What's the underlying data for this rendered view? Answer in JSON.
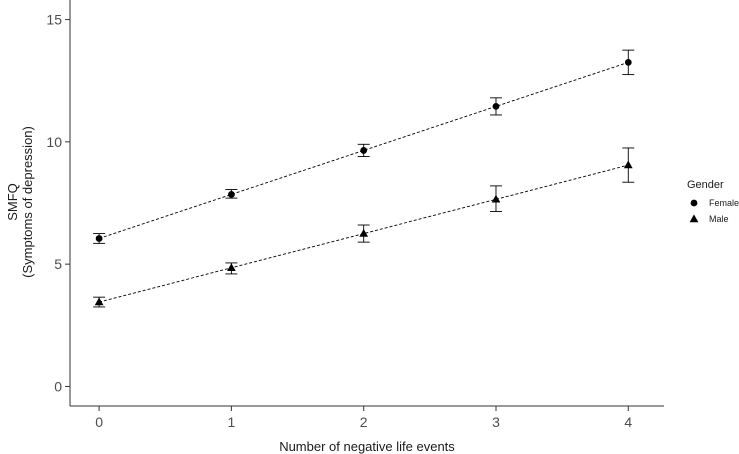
{
  "chart_data": {
    "type": "line",
    "xlabel": "Number of negative life events",
    "ylabel": [
      "SMFQ",
      "(Symptoms of depression)"
    ],
    "x": [
      0,
      1,
      2,
      3,
      4
    ],
    "xticks": [
      "0",
      "1",
      "2",
      "3",
      "4"
    ],
    "yticks": [
      "0",
      "5",
      "10",
      "15"
    ],
    "xlim": [
      -0.22,
      4.27
    ],
    "ylim": [
      -0.8,
      15.8
    ],
    "grid": false,
    "legend": {
      "title": "Gender",
      "position": "right"
    },
    "series": [
      {
        "name": "Female",
        "marker": "circle",
        "values": [
          6.05,
          7.85,
          9.65,
          11.45,
          13.25
        ],
        "err_low": [
          5.85,
          7.7,
          9.4,
          11.1,
          12.75
        ],
        "err_high": [
          6.25,
          8.05,
          9.9,
          11.8,
          13.75
        ]
      },
      {
        "name": "Male",
        "marker": "triangle",
        "values": [
          3.45,
          4.85,
          6.25,
          7.65,
          9.05
        ],
        "err_low": [
          3.25,
          4.6,
          5.9,
          7.15,
          8.35
        ],
        "err_high": [
          3.65,
          5.05,
          6.6,
          8.2,
          9.75
        ]
      }
    ]
  }
}
